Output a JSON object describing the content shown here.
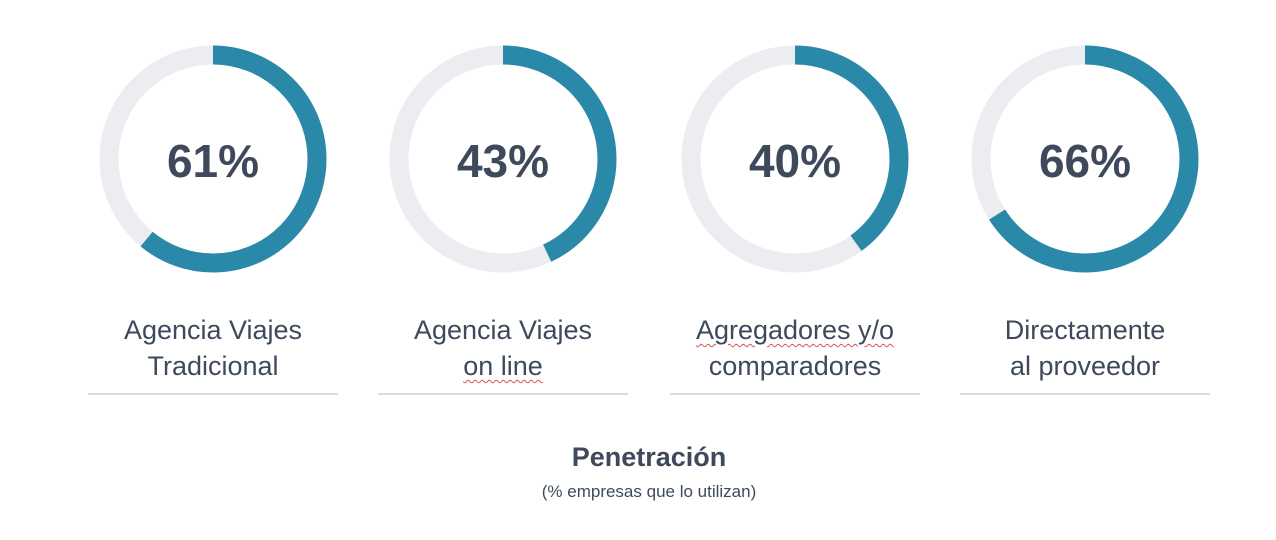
{
  "chart_data": {
    "type": "pie",
    "variant": "donut",
    "title": "Penetración",
    "subtitle": "(% empresas que lo utilizan)",
    "unit": "%",
    "items": [
      {
        "value": 61,
        "value_label": "61%",
        "label_lines": [
          "Agencia Viajes",
          "Tradicional"
        ]
      },
      {
        "value": 43,
        "value_label": "43%",
        "label_lines": [
          "Agencia Viajes",
          "on line"
        ]
      },
      {
        "value": 40,
        "value_label": "40%",
        "label_lines": [
          "Agregadores y/o",
          "comparadores"
        ]
      },
      {
        "value": 66,
        "value_label": "66%",
        "label_lines": [
          "Directamente",
          "al proveedor"
        ]
      }
    ],
    "colors": {
      "filled": "#2a89a8",
      "track": "#ebedf0",
      "text": "#3e4a5c"
    }
  }
}
